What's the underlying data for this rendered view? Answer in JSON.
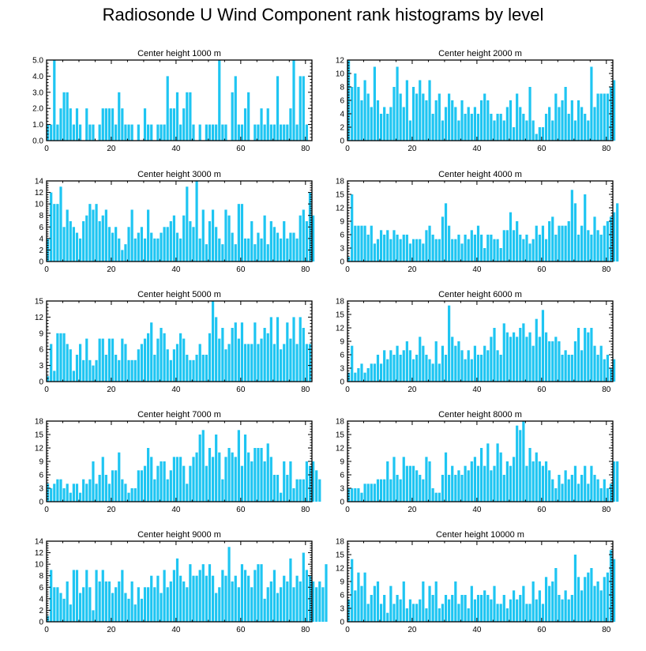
{
  "title": "Radiosonde U Wind Component rank histograms by level",
  "colors": {
    "bar": "#1ec5f2",
    "frame": "#000000",
    "background": "#ffffff"
  },
  "chart_data": [
    {
      "type": "bar",
      "title": "Center height 1000 m",
      "xlim": [
        0,
        82
      ],
      "ylim": [
        0,
        5
      ],
      "xticks": [
        0,
        20,
        40,
        60,
        80
      ],
      "yticks": [
        0,
        1,
        2,
        3,
        4,
        5
      ],
      "ytick_labels": [
        "0.0",
        "1.0",
        "2.0",
        "3.0",
        "4.0",
        "5.0"
      ],
      "values": [
        1,
        1,
        5,
        1,
        2,
        3,
        3,
        2,
        1,
        2,
        1,
        0,
        2,
        1,
        1,
        0,
        1,
        2,
        2,
        2,
        2,
        1,
        3,
        2,
        1,
        1,
        1,
        0,
        1,
        0,
        2,
        1,
        1,
        0,
        1,
        1,
        1,
        4,
        2,
        2,
        3,
        1,
        2,
        3,
        3,
        1,
        0,
        1,
        0,
        1,
        1,
        1,
        1,
        5,
        1,
        1,
        0,
        3,
        4,
        1,
        1,
        2,
        3,
        0,
        1,
        1,
        2,
        1,
        2,
        1,
        1,
        4,
        1,
        1,
        1,
        2,
        5,
        1,
        4,
        4,
        1,
        0
      ]
    },
    {
      "type": "bar",
      "title": "Center height 2000 m",
      "xlim": [
        0,
        82
      ],
      "ylim": [
        0,
        12
      ],
      "xticks": [
        0,
        20,
        40,
        60,
        80
      ],
      "yticks": [
        0,
        2,
        4,
        6,
        8,
        10,
        12
      ],
      "ytick_labels": [
        "0",
        "2",
        "4",
        "6",
        "8",
        "10",
        "12"
      ],
      "values": [
        12,
        8,
        10,
        8,
        6,
        9,
        7,
        5,
        11,
        6,
        4,
        5,
        4,
        5,
        8,
        11,
        7,
        5,
        9,
        3,
        8,
        7,
        9,
        7,
        6,
        9,
        4,
        6,
        7,
        3,
        5,
        7,
        6,
        5,
        3,
        6,
        4,
        5,
        4,
        5,
        4,
        6,
        7,
        6,
        4,
        3,
        4,
        4,
        3,
        5,
        6,
        2,
        7,
        5,
        4,
        3,
        8,
        3,
        1,
        2,
        2,
        4,
        5,
        3,
        7,
        5,
        6,
        8,
        4,
        6,
        3,
        6,
        5,
        4,
        3,
        11,
        5,
        7,
        7,
        7,
        7,
        8,
        9
      ]
    },
    {
      "type": "bar",
      "title": "Center height 3000 m",
      "xlim": [
        0,
        82
      ],
      "ylim": [
        0,
        14
      ],
      "xticks": [
        0,
        20,
        40,
        60,
        80
      ],
      "yticks": [
        0,
        2,
        4,
        6,
        8,
        10,
        12,
        14
      ],
      "ytick_labels": [
        "0",
        "2",
        "4",
        "6",
        "8",
        "10",
        "12",
        "14"
      ],
      "values": [
        4,
        12,
        10,
        10,
        13,
        6,
        9,
        7,
        6,
        5,
        4,
        7,
        8,
        10,
        9,
        10,
        7,
        8,
        9,
        6,
        5,
        6,
        4,
        2,
        3,
        6,
        9,
        4,
        5,
        6,
        4,
        9,
        5,
        4,
        4,
        5,
        6,
        6,
        7,
        8,
        5,
        4,
        8,
        13,
        7,
        6,
        14,
        4,
        9,
        3,
        7,
        9,
        6,
        4,
        3,
        9,
        8,
        5,
        3,
        10,
        10,
        4,
        4,
        7,
        3,
        5,
        4,
        8,
        3,
        7,
        6,
        5,
        4,
        7,
        4,
        5,
        5,
        4,
        8,
        9,
        7,
        12,
        8
      ]
    },
    {
      "type": "bar",
      "title": "Center height 4000 m",
      "xlim": [
        0,
        82
      ],
      "ylim": [
        0,
        18
      ],
      "xticks": [
        0,
        20,
        40,
        60,
        80
      ],
      "yticks": [
        0,
        3,
        6,
        9,
        12,
        15,
        18
      ],
      "ytick_labels": [
        "0",
        "3",
        "6",
        "9",
        "12",
        "15",
        "18"
      ],
      "values": [
        1,
        15,
        8,
        8,
        8,
        8,
        6,
        8,
        4,
        5,
        7,
        6,
        7,
        5,
        7,
        6,
        5,
        6,
        6,
        4,
        5,
        5,
        5,
        4,
        7,
        8,
        6,
        5,
        5,
        10,
        13,
        8,
        5,
        5,
        6,
        4,
        6,
        5,
        7,
        6,
        8,
        6,
        3,
        6,
        6,
        5,
        5,
        3,
        7,
        7,
        11,
        7,
        9,
        6,
        5,
        6,
        4,
        5,
        8,
        6,
        8,
        5,
        9,
        10,
        6,
        8,
        8,
        8,
        9,
        16,
        13,
        6,
        8,
        15,
        7,
        6,
        10,
        7,
        6,
        8,
        9,
        10,
        11,
        13
      ]
    },
    {
      "type": "bar",
      "title": "Center height 5000 m",
      "xlim": [
        0,
        82
      ],
      "ylim": [
        0,
        15
      ],
      "xticks": [
        0,
        20,
        40,
        60,
        80
      ],
      "yticks": [
        0,
        3,
        6,
        9,
        12,
        15
      ],
      "ytick_labels": [
        "0",
        "3",
        "6",
        "9",
        "12",
        "15"
      ],
      "values": [
        1,
        7,
        2,
        9,
        9,
        9,
        7,
        6,
        2,
        5,
        7,
        4,
        8,
        4,
        3,
        4,
        8,
        8,
        5,
        8,
        8,
        5,
        4,
        8,
        7,
        4,
        4,
        4,
        6,
        7,
        8,
        9,
        11,
        5,
        8,
        10,
        9,
        6,
        4,
        6,
        7,
        9,
        8,
        5,
        4,
        4,
        5,
        7,
        5,
        5,
        9,
        15,
        12,
        8,
        10,
        6,
        7,
        10,
        11,
        8,
        11,
        7,
        7,
        7,
        11,
        7,
        8,
        10,
        9,
        12,
        7,
        12,
        6,
        7,
        11,
        8,
        12,
        7,
        12,
        10,
        7,
        7
      ]
    },
    {
      "type": "bar",
      "title": "Center height 6000 m",
      "xlim": [
        0,
        82
      ],
      "ylim": [
        0,
        18
      ],
      "xticks": [
        0,
        20,
        40,
        60,
        80
      ],
      "yticks": [
        0,
        3,
        6,
        9,
        12,
        15,
        18
      ],
      "ytick_labels": [
        "0",
        "3",
        "6",
        "9",
        "12",
        "15",
        "18"
      ],
      "values": [
        2,
        8,
        2,
        3,
        4,
        2,
        3,
        4,
        4,
        6,
        4,
        7,
        5,
        7,
        6,
        8,
        6,
        7,
        9,
        7,
        5,
        6,
        10,
        8,
        6,
        5,
        4,
        9,
        4,
        8,
        6,
        17,
        10,
        8,
        9,
        7,
        5,
        7,
        5,
        8,
        6,
        6,
        8,
        7,
        10,
        12,
        7,
        6,
        13,
        11,
        10,
        11,
        10,
        12,
        13,
        10,
        11,
        8,
        14,
        10,
        16,
        11,
        9,
        9,
        10,
        9,
        6,
        7,
        6,
        6,
        9,
        12,
        7,
        12,
        11,
        12,
        8,
        6,
        8,
        5,
        6,
        3,
        5
      ]
    },
    {
      "type": "bar",
      "title": "Center height 7000 m",
      "xlim": [
        0,
        82
      ],
      "ylim": [
        0,
        18
      ],
      "xticks": [
        0,
        20,
        40,
        60,
        80
      ],
      "yticks": [
        0,
        3,
        6,
        9,
        12,
        15,
        18
      ],
      "ytick_labels": [
        "0",
        "3",
        "6",
        "9",
        "12",
        "15",
        "18"
      ],
      "values": [
        4,
        3,
        4,
        5,
        5,
        3,
        4,
        2,
        4,
        4,
        2,
        5,
        4,
        5,
        9,
        4,
        6,
        10,
        6,
        4,
        7,
        7,
        11,
        5,
        4,
        2,
        3,
        3,
        7,
        7,
        8,
        12,
        10,
        5,
        8,
        9,
        9,
        5,
        7,
        10,
        10,
        10,
        8,
        4,
        8,
        10,
        11,
        15,
        16,
        8,
        12,
        10,
        15,
        11,
        5,
        10,
        12,
        11,
        10,
        16,
        8,
        15,
        11,
        9,
        12,
        12,
        12,
        9,
        13,
        10,
        6,
        6,
        2,
        9,
        6,
        9,
        3,
        5,
        5,
        5,
        9,
        8,
        9,
        7,
        5
      ]
    },
    {
      "type": "bar",
      "title": "Center height 8000 m",
      "xlim": [
        0,
        82
      ],
      "ylim": [
        0,
        18
      ],
      "xticks": [
        0,
        20,
        40,
        60,
        80
      ],
      "yticks": [
        0,
        3,
        6,
        9,
        12,
        15,
        18
      ],
      "ytick_labels": [
        "0",
        "3",
        "6",
        "9",
        "12",
        "15",
        "18"
      ],
      "values": [
        3,
        3,
        3,
        3,
        2,
        4,
        4,
        4,
        4,
        5,
        5,
        5,
        9,
        5,
        10,
        6,
        5,
        10,
        8,
        8,
        8,
        7,
        6,
        5,
        10,
        9,
        3,
        2,
        2,
        6,
        11,
        6,
        8,
        6,
        7,
        6,
        8,
        7,
        9,
        10,
        8,
        12,
        8,
        13,
        7,
        8,
        13,
        11,
        6,
        9,
        8,
        10,
        17,
        16,
        18,
        8,
        12,
        9,
        11,
        9,
        8,
        9,
        7,
        5,
        3,
        6,
        4,
        7,
        5,
        6,
        8,
        4,
        6,
        8,
        4,
        8,
        6,
        5,
        3,
        5,
        3,
        4,
        9,
        9
      ]
    },
    {
      "type": "bar",
      "title": "Center height 9000 m",
      "xlim": [
        0,
        82
      ],
      "ylim": [
        0,
        14
      ],
      "xticks": [
        0,
        20,
        40,
        60,
        80
      ],
      "yticks": [
        0,
        2,
        4,
        6,
        8,
        10,
        12,
        14
      ],
      "ytick_labels": [
        "0",
        "2",
        "4",
        "6",
        "8",
        "10",
        "12",
        "14"
      ],
      "values": [
        1,
        9,
        6,
        6,
        5,
        4,
        7,
        3,
        9,
        9,
        5,
        6,
        9,
        6,
        2,
        9,
        7,
        9,
        7,
        7,
        5,
        6,
        7,
        9,
        5,
        4,
        7,
        3,
        6,
        4,
        6,
        6,
        8,
        6,
        8,
        5,
        9,
        6,
        7,
        9,
        11,
        8,
        7,
        6,
        10,
        8,
        8,
        9,
        10,
        8,
        10,
        8,
        5,
        6,
        9,
        8,
        13,
        7,
        8,
        6,
        10,
        9,
        8,
        6,
        9,
        10,
        10,
        4,
        6,
        7,
        9,
        5,
        6,
        8,
        7,
        11,
        6,
        8,
        7,
        12,
        9,
        8,
        7,
        6,
        7,
        6,
        10
      ]
    },
    {
      "type": "bar",
      "title": "Center height 10000 m",
      "xlim": [
        0,
        82
      ],
      "ylim": [
        0,
        18
      ],
      "xticks": [
        0,
        20,
        40,
        60,
        80
      ],
      "yticks": [
        0,
        3,
        6,
        9,
        12,
        15,
        18
      ],
      "ytick_labels": [
        "0",
        "3",
        "6",
        "9",
        "12",
        "15",
        "18"
      ],
      "values": [
        5,
        14,
        7,
        11,
        8,
        11,
        4,
        6,
        8,
        9,
        4,
        6,
        2,
        8,
        4,
        6,
        5,
        9,
        3,
        5,
        4,
        4,
        5,
        9,
        3,
        8,
        6,
        9,
        3,
        4,
        6,
        5,
        6,
        9,
        4,
        6,
        6,
        3,
        8,
        5,
        6,
        6,
        7,
        6,
        5,
        8,
        4,
        4,
        6,
        3,
        5,
        7,
        5,
        6,
        8,
        4,
        4,
        9,
        5,
        7,
        4,
        10,
        8,
        9,
        12,
        6,
        5,
        7,
        5,
        6,
        15,
        10,
        7,
        10,
        11,
        12,
        8,
        9,
        7,
        10,
        11,
        16,
        14
      ]
    }
  ]
}
